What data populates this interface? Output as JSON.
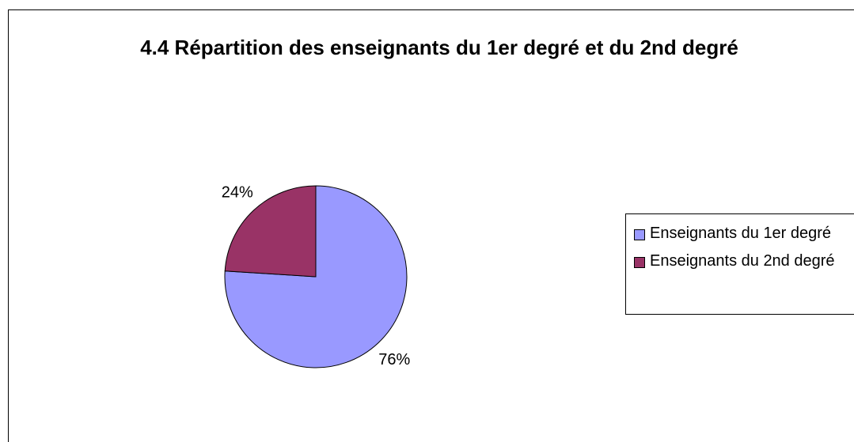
{
  "chart_data": {
    "type": "pie",
    "title": "4.4 Répartition des enseignants du 1er degré et du 2nd degré",
    "categories": [
      "Enseignants du 1er degré",
      "Enseignants du 2nd degré"
    ],
    "values": [
      76,
      24
    ],
    "value_labels": [
      "76%",
      "24%"
    ],
    "colors": [
      "#9999ff",
      "#993366"
    ],
    "legend": "right"
  }
}
